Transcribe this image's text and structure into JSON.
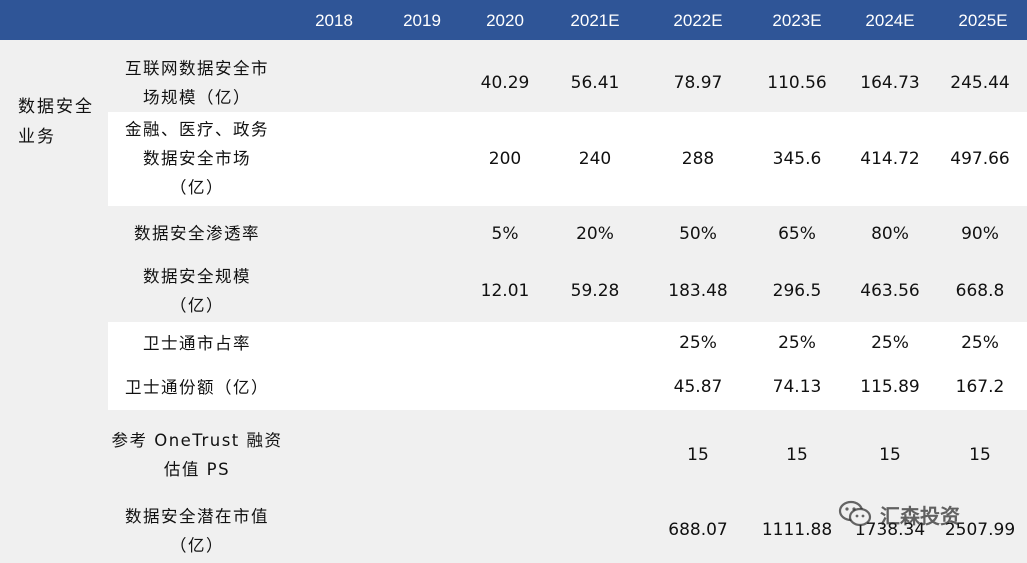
{
  "header": {
    "years": [
      "2018",
      "2019",
      "2020",
      "2021E",
      "2022E",
      "2023E",
      "2024E",
      "2025E"
    ]
  },
  "category": "数据安全业务",
  "rows": [
    {
      "label": "互联网数据安全市场规模（亿）",
      "label_lines": [
        "互联网数据安全市",
        "场规模（亿）"
      ],
      "values": [
        "",
        "",
        "40.29",
        "56.41",
        "78.97",
        "110.56",
        "164.73",
        "245.44"
      ]
    },
    {
      "label": "金融、医疗、政务数据安全市场（亿）",
      "label_lines": [
        "金融、医疗、政务",
        "数据安全市场",
        "（亿）"
      ],
      "values": [
        "",
        "",
        "200",
        "240",
        "288",
        "345.6",
        "414.72",
        "497.66"
      ]
    },
    {
      "label": "数据安全渗透率",
      "label_lines": [
        "数据安全渗透率"
      ],
      "values": [
        "",
        "",
        "5%",
        "20%",
        "50%",
        "65%",
        "80%",
        "90%"
      ]
    },
    {
      "label": "数据安全规模（亿）",
      "label_lines": [
        "数据安全规模",
        "（亿）"
      ],
      "values": [
        "",
        "",
        "12.01",
        "59.28",
        "183.48",
        "296.5",
        "463.56",
        "668.8"
      ]
    },
    {
      "label": "卫士通市占率",
      "label_lines": [
        "卫士通市占率"
      ],
      "values": [
        "",
        "",
        "",
        "",
        "25%",
        "25%",
        "25%",
        "25%"
      ]
    },
    {
      "label": "卫士通份额（亿）",
      "label_lines": [
        "卫士通份额（亿）"
      ],
      "values": [
        "",
        "",
        "",
        "",
        "45.87",
        "74.13",
        "115.89",
        "167.2"
      ]
    },
    {
      "label": "参考 OneTrust 融资估值 PS",
      "label_lines": [
        "参考 OneTrust 融资",
        "估值 PS"
      ],
      "values": [
        "",
        "",
        "",
        "",
        "15",
        "15",
        "15",
        "15"
      ]
    },
    {
      "label": "数据安全潜在市值（亿）",
      "label_lines": [
        "数据安全潜在市值",
        "（亿）"
      ],
      "values": [
        "",
        "",
        "",
        "",
        "688.07",
        "1111.88",
        "1738.34",
        "2507.99"
      ]
    }
  ],
  "watermark": {
    "text": "汇森投资",
    "icon": "wechat-icon"
  },
  "colors": {
    "header_bg": "#2f5597",
    "band_gray": "#f0f0f0"
  }
}
